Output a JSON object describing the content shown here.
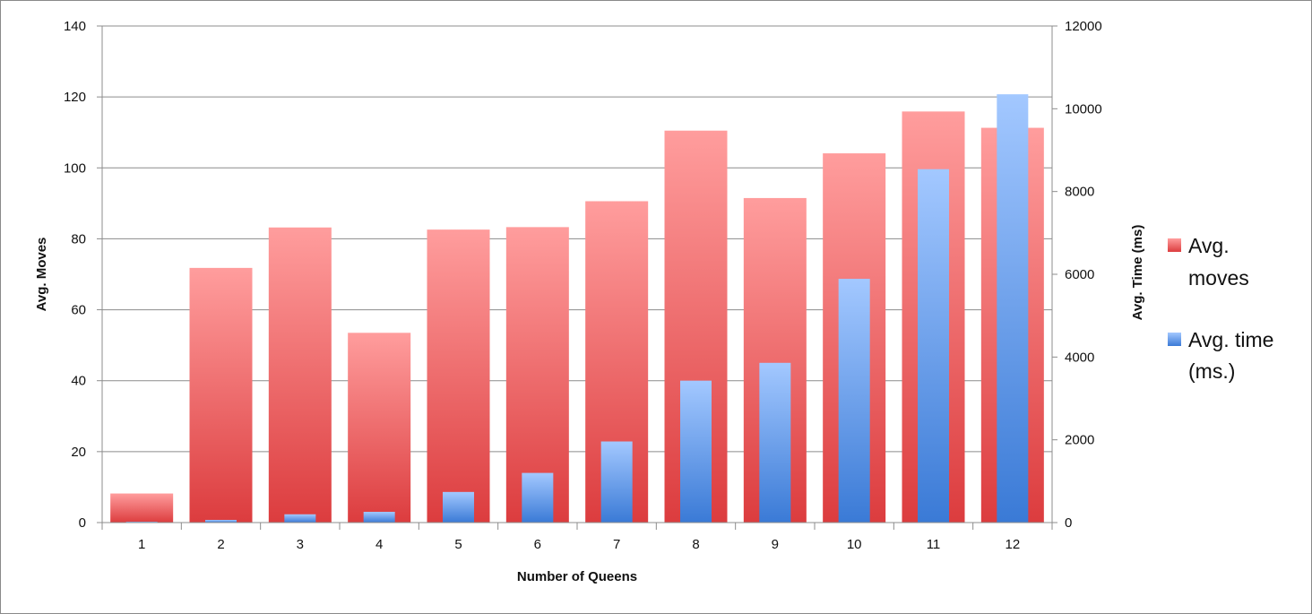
{
  "chart_data": {
    "type": "bar",
    "title": "",
    "xlabel": "Number of Queens",
    "ylabel_left": "Avg. Moves",
    "ylabel_right": "Avg. Time (ms)",
    "categories": [
      "1",
      "2",
      "3",
      "4",
      "5",
      "6",
      "7",
      "8",
      "9",
      "10",
      "11",
      "12"
    ],
    "y_left": {
      "min": 0,
      "max": 140,
      "ticks": [
        0,
        20,
        40,
        60,
        80,
        100,
        120,
        140
      ]
    },
    "y_right": {
      "min": 0,
      "max": 12000,
      "ticks": [
        0,
        2000,
        4000,
        6000,
        8000,
        10000,
        12000
      ]
    },
    "grid": true,
    "legend_position": "right",
    "series": [
      {
        "name": "Avg. moves",
        "legend_lines": [
          "Avg.",
          "moves"
        ],
        "axis": "left",
        "color": "#e8484a",
        "color_light": "#ff9d9d",
        "values": [
          8.2,
          71.8,
          83.2,
          53.5,
          82.6,
          83.3,
          90.6,
          110.5,
          91.5,
          104.1,
          115.9,
          111.3
        ]
      },
      {
        "name": "Avg. time (ms.)",
        "legend_lines": [
          "Avg. time",
          "(ms.)"
        ],
        "axis": "right",
        "color": "#3f7fd8",
        "color_light": "#9cc4ff",
        "values": [
          15,
          65,
          200,
          260,
          740,
          1200,
          1960,
          3430,
          3860,
          5890,
          8540,
          10350
        ]
      }
    ]
  }
}
